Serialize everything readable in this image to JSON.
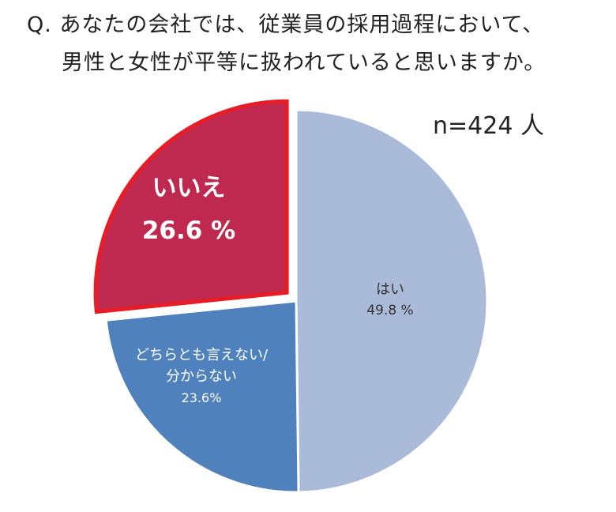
{
  "question": {
    "line1": "Q. あなたの会社では、従業員の採用過程において、",
    "line2": "男性と女性が平等に扱われていると思いますか。"
  },
  "sample": "n=424 人",
  "colors": {
    "yes": "#a9bbd8",
    "neutral": "#4f81bd",
    "no": "#c0294f",
    "no_border": "#e81c24",
    "separator": "#ffffff"
  },
  "chart_data": {
    "type": "pie",
    "title": "",
    "slices": [
      {
        "label": "はい",
        "value": 49.8,
        "display": "49.8 %",
        "exploded": false
      },
      {
        "label": "どちらとも言えない/\n分からない",
        "value": 23.6,
        "display": "23.6%",
        "exploded": false
      },
      {
        "label": "いいえ",
        "value": 26.6,
        "display": "26.6 %",
        "exploded": true
      }
    ]
  }
}
